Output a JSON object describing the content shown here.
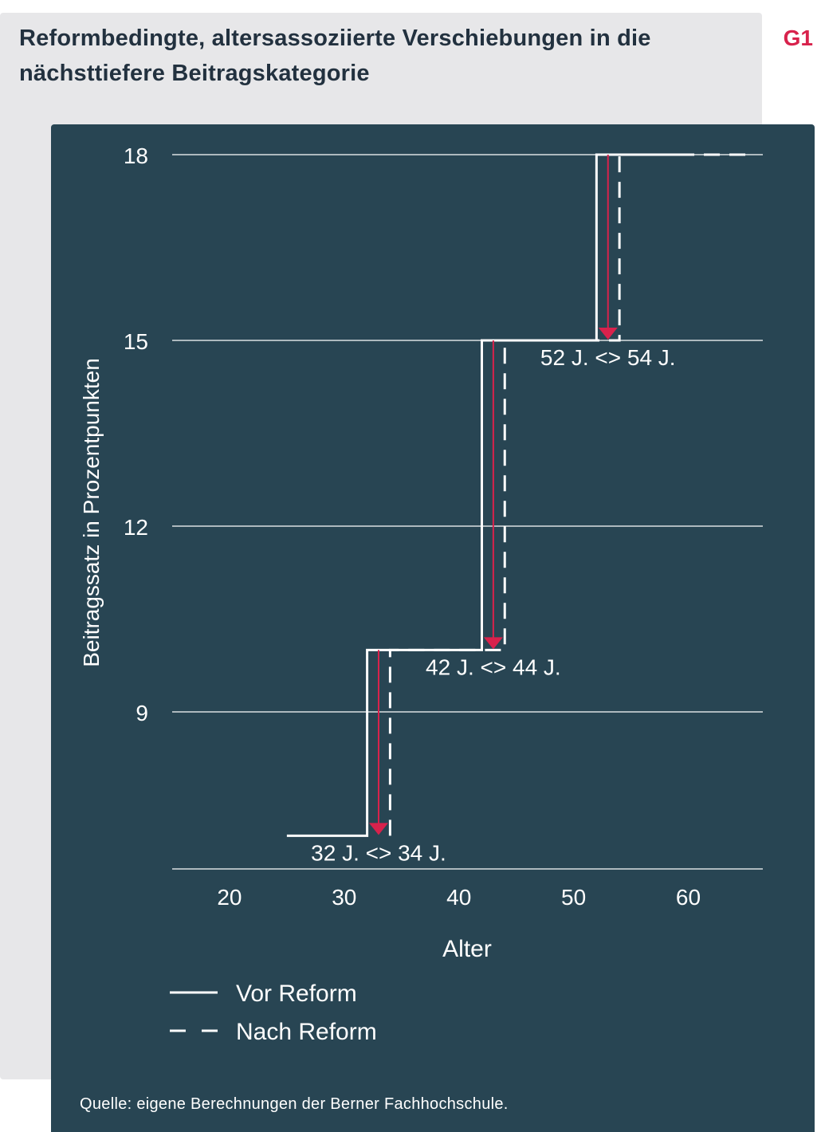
{
  "title": {
    "line1": "Reformbedingte, altersassoziierte Verschiebungen in die",
    "line2": "nächsttiefere Beitragskategorie"
  },
  "figure_label": "G1",
  "source": "Quelle: eigene Berechnungen der Berner Fachhochschule.",
  "colors": {
    "panel": "#284553",
    "background": "#e7e7e9",
    "line": "#ffffff",
    "arrow": "#d8224c",
    "title": "#22313f"
  },
  "chart_data": {
    "type": "line",
    "xlabel": "Alter",
    "ylabel": "Beitragssatz in Prozentpunkten",
    "xlim": [
      15,
      66.5
    ],
    "ylim": [
      5.5,
      18.5
    ],
    "x_ticks": [
      20,
      30,
      40,
      50,
      60
    ],
    "y_ticks": [
      9,
      12,
      15,
      18
    ],
    "grid": "horizontal",
    "legend_position": "bottom-left",
    "series": [
      {
        "name": "Vor Reform",
        "style": "solid",
        "x": [
          25,
          32,
          32,
          42,
          42,
          52,
          52,
          60
        ],
        "y": [
          7,
          7,
          10,
          10,
          15,
          15,
          18,
          18
        ]
      },
      {
        "name": "Nach Reform",
        "style": "dashed",
        "x": [
          34,
          34,
          44,
          44,
          54,
          54,
          65
        ],
        "y": [
          7,
          10,
          10,
          15,
          15,
          18,
          18
        ]
      }
    ],
    "shifts": [
      {
        "from": 32,
        "to": 34,
        "label": "32 J. <> 34 J.",
        "y_top": 10,
        "y_bottom": 7
      },
      {
        "from": 42,
        "to": 44,
        "label": "42 J. <> 44 J.",
        "y_top": 15,
        "y_bottom": 10
      },
      {
        "from": 52,
        "to": 54,
        "label": "52 J. <> 54 J.",
        "y_top": 18,
        "y_bottom": 15
      }
    ]
  }
}
